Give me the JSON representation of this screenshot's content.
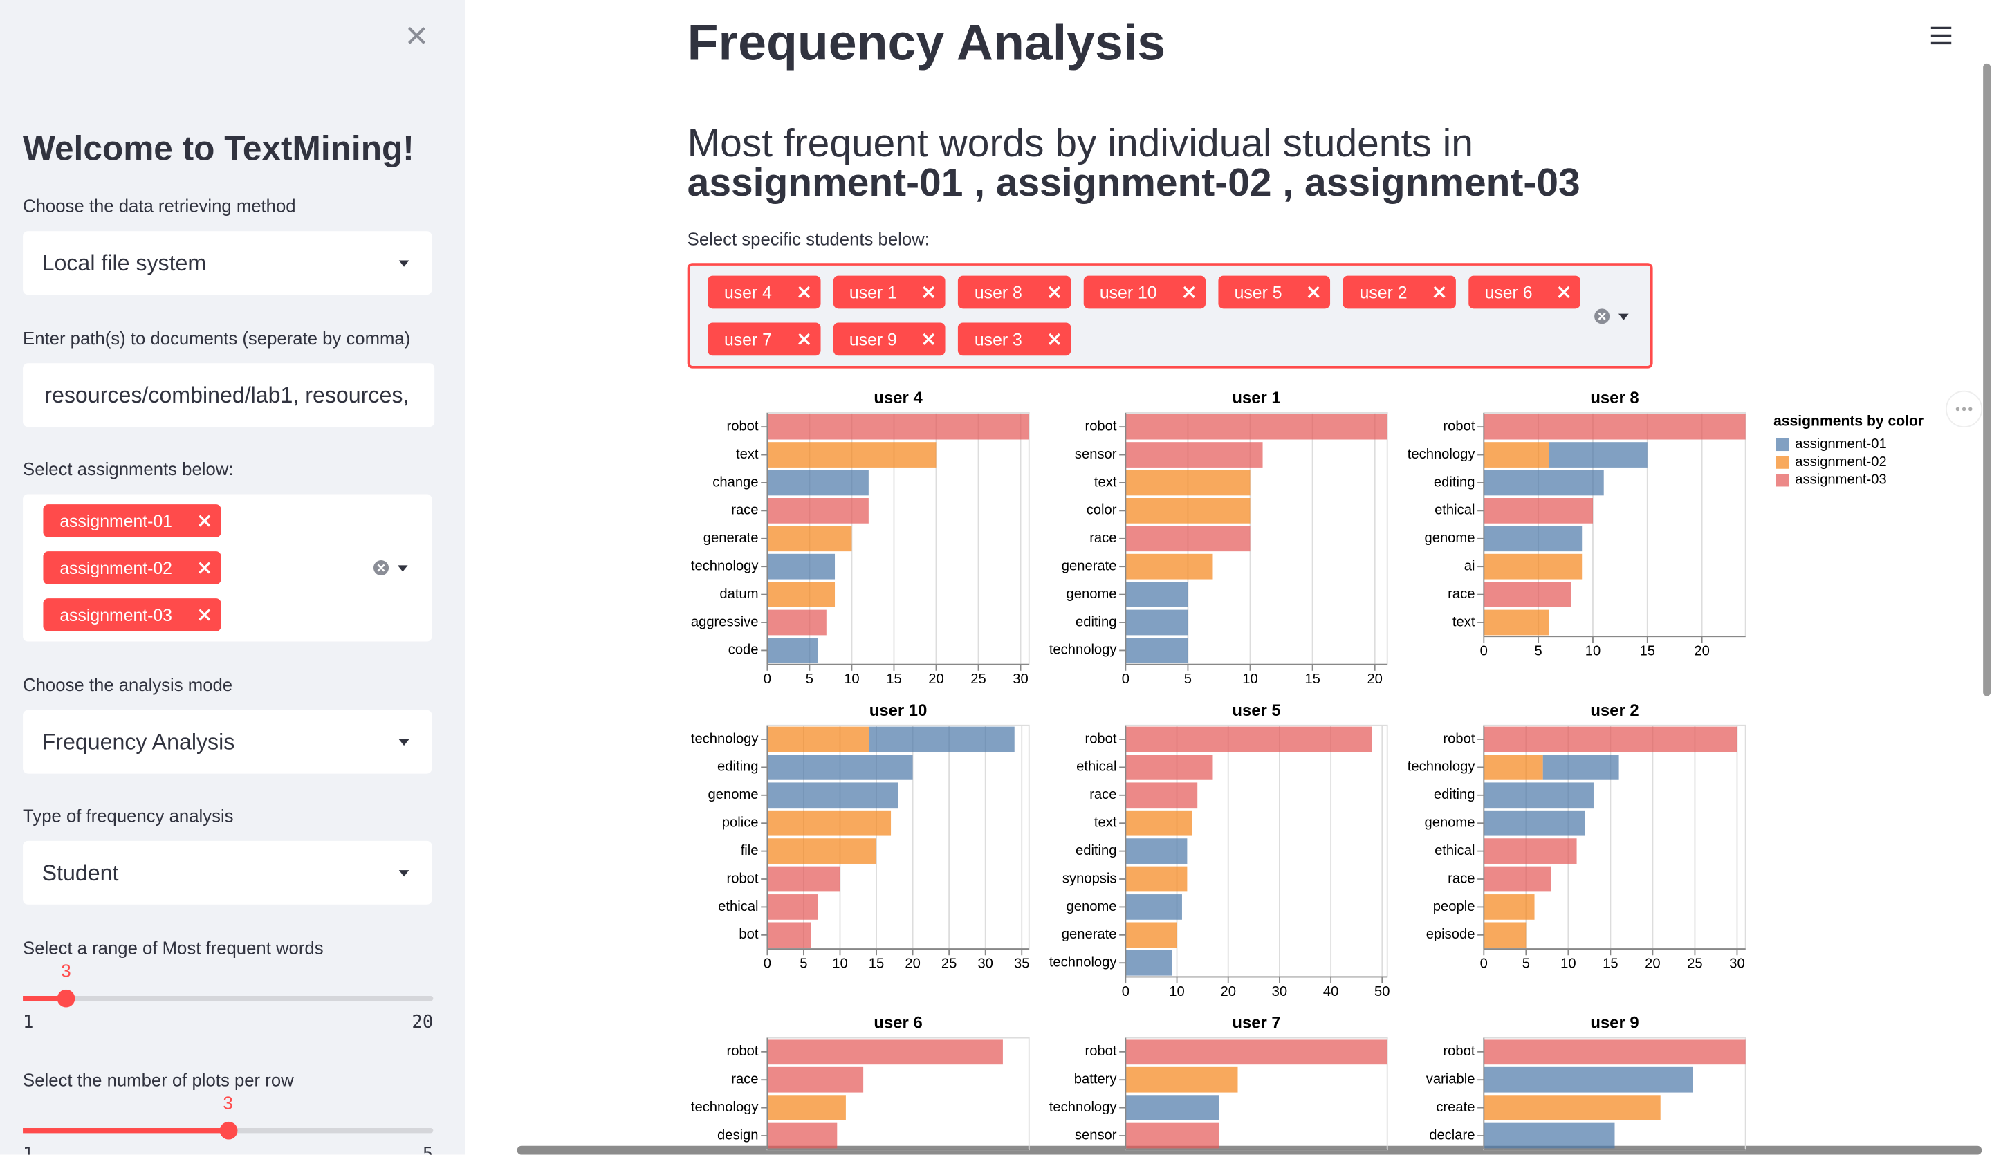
{
  "sidebar": {
    "title": "Welcome to TextMining!",
    "retrieval": {
      "label": "Choose the data retrieving method",
      "value": "Local file system"
    },
    "paths": {
      "label": "Enter path(s) to documents (seperate by comma)",
      "value": "resources/combined/lab1, resources,"
    },
    "assignments": {
      "label": "Select assignments below:",
      "selected": [
        "assignment-01",
        "assignment-02",
        "assignment-03"
      ]
    },
    "mode": {
      "label": "Choose the analysis mode",
      "value": "Frequency Analysis"
    },
    "analysis_type": {
      "label": "Type of frequency analysis",
      "value": "Student"
    },
    "word_range": {
      "label": "Select a range of Most frequent words",
      "value": 3,
      "min": 1,
      "max": 20
    },
    "plots_per_row": {
      "label": "Select the number of plots per row",
      "value": 3,
      "min": 1,
      "max": 5
    }
  },
  "main": {
    "title": "Frequency Analysis",
    "subtitle": "Most frequent words by individual students in",
    "assignments_heading": "assignment-01 , assignment-02 , assignment-03",
    "students_label": "Select specific students below:",
    "students": [
      "user 4",
      "user 1",
      "user 8",
      "user 10",
      "user 5",
      "user 2",
      "user 6",
      "user 7",
      "user 9",
      "user 3"
    ]
  },
  "legend": {
    "title": "assignments by color",
    "items": [
      {
        "name": "assignment-01",
        "color": "#4c78a8"
      },
      {
        "name": "assignment-02",
        "color": "#f58518"
      },
      {
        "name": "assignment-03",
        "color": "#e45756"
      }
    ]
  },
  "chart_data": [
    {
      "type": "bar",
      "title": "user 4",
      "categories": [
        "robot",
        "text",
        "change",
        "race",
        "generate",
        "technology",
        "datum",
        "aggressive",
        "code"
      ],
      "series": [
        {
          "values": [
            null,
            null,
            12,
            null,
            null,
            8,
            null,
            null,
            6
          ]
        },
        {
          "values": [
            null,
            20,
            null,
            null,
            10,
            null,
            8,
            null,
            null
          ]
        },
        {
          "values": [
            31,
            null,
            null,
            12,
            null,
            null,
            null,
            7,
            null
          ]
        }
      ],
      "xlim": [
        0,
        31
      ],
      "xticks": [
        0,
        5,
        10,
        15,
        20,
        25,
        30
      ],
      "grid": true
    },
    {
      "type": "bar",
      "title": "user 1",
      "categories": [
        "robot",
        "sensor",
        "text",
        "color",
        "race",
        "generate",
        "genome",
        "editing",
        "technology"
      ],
      "series": [
        {
          "values": [
            null,
            null,
            null,
            null,
            null,
            null,
            5,
            5,
            5
          ]
        },
        {
          "values": [
            null,
            null,
            10,
            10,
            null,
            7,
            null,
            null,
            null
          ]
        },
        {
          "values": [
            21,
            11,
            null,
            null,
            10,
            null,
            null,
            null,
            null
          ]
        }
      ],
      "xlim": [
        0,
        21
      ],
      "xticks": [
        0,
        5,
        10,
        15,
        20
      ],
      "grid": true
    },
    {
      "type": "bar",
      "title": "user 8",
      "categories": [
        "robot",
        "technology",
        "editing",
        "ethical",
        "genome",
        "ai",
        "race",
        "text"
      ],
      "series": [
        {
          "values": [
            null,
            9,
            11,
            null,
            9,
            null,
            null,
            null
          ]
        },
        {
          "values": [
            null,
            6,
            null,
            null,
            null,
            9,
            null,
            6
          ]
        },
        {
          "values": [
            24,
            null,
            null,
            10,
            null,
            null,
            8,
            null
          ]
        }
      ],
      "xlim": [
        0,
        24
      ],
      "xticks": [
        0,
        5,
        10,
        15,
        20
      ],
      "grid": true
    },
    {
      "type": "bar",
      "title": "user 10",
      "categories": [
        "technology",
        "editing",
        "genome",
        "police",
        "file",
        "robot",
        "ethical",
        "bot"
      ],
      "series": [
        {
          "values": [
            20,
            20,
            18,
            null,
            null,
            null,
            null,
            null
          ]
        },
        {
          "values": [
            14,
            null,
            null,
            17,
            15,
            null,
            null,
            null
          ]
        },
        {
          "values": [
            null,
            null,
            null,
            null,
            null,
            10,
            7,
            6
          ]
        }
      ],
      "xlim": [
        0,
        36
      ],
      "xticks": [
        0,
        5,
        10,
        15,
        20,
        25,
        30,
        35
      ],
      "grid": true
    },
    {
      "type": "bar",
      "title": "user 5",
      "categories": [
        "robot",
        "ethical",
        "race",
        "text",
        "editing",
        "synopsis",
        "genome",
        "generate",
        "technology"
      ],
      "series": [
        {
          "values": [
            null,
            null,
            null,
            null,
            12,
            null,
            11,
            null,
            9
          ]
        },
        {
          "values": [
            null,
            null,
            null,
            13,
            null,
            12,
            null,
            10,
            null
          ]
        },
        {
          "values": [
            48,
            17,
            14,
            null,
            null,
            null,
            null,
            null,
            null
          ]
        }
      ],
      "xlim": [
        0,
        51
      ],
      "xticks": [
        0,
        10,
        20,
        30,
        40,
        50
      ],
      "grid": true
    },
    {
      "type": "bar",
      "title": "user 2",
      "categories": [
        "robot",
        "technology",
        "editing",
        "genome",
        "ethical",
        "race",
        "people",
        "episode"
      ],
      "series": [
        {
          "values": [
            null,
            9,
            13,
            12,
            null,
            null,
            null,
            null
          ]
        },
        {
          "values": [
            null,
            7,
            null,
            null,
            null,
            null,
            6,
            5
          ]
        },
        {
          "values": [
            30,
            null,
            null,
            null,
            11,
            8,
            null,
            null
          ]
        }
      ],
      "xlim": [
        0,
        31
      ],
      "xticks": [
        0,
        5,
        10,
        15,
        20,
        25,
        30
      ],
      "grid": true
    },
    {
      "type": "bar",
      "title": "user 6",
      "categories": [
        "robot",
        "race",
        "technology",
        "design"
      ],
      "series": [
        {
          "values": [
            null,
            null,
            null,
            null
          ]
        },
        {
          "values": [
            null,
            null,
            9,
            null
          ]
        },
        {
          "values": [
            27,
            11,
            null,
            8
          ]
        }
      ],
      "xlim": [
        0,
        30
      ]
    },
    {
      "type": "bar",
      "title": "user 7",
      "categories": [
        "robot",
        "battery",
        "technology",
        "sensor"
      ],
      "series": [
        {
          "values": [
            null,
            null,
            10,
            null
          ]
        },
        {
          "values": [
            null,
            12,
            null,
            null
          ]
        },
        {
          "values": [
            28,
            null,
            null,
            10
          ]
        }
      ],
      "xlim": [
        0,
        28
      ]
    },
    {
      "type": "bar",
      "title": "user 9",
      "categories": [
        "robot",
        "variable",
        "create",
        "declare"
      ],
      "series": [
        {
          "values": [
            null,
            32,
            null,
            20
          ]
        },
        {
          "values": [
            null,
            null,
            27,
            null
          ]
        },
        {
          "values": [
            40,
            null,
            null,
            null
          ]
        }
      ],
      "xlim": [
        0,
        40
      ]
    }
  ]
}
